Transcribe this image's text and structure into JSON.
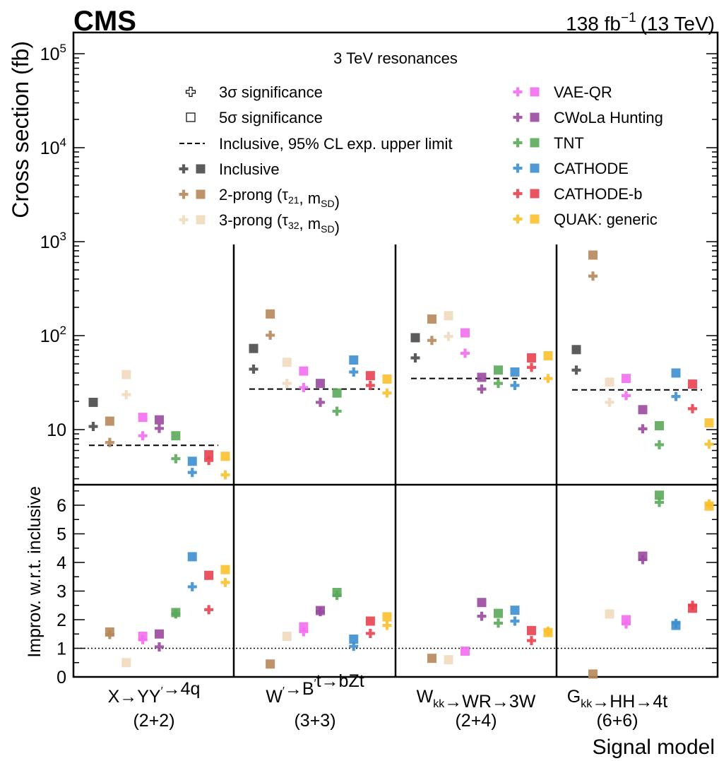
{
  "header": {
    "experiment": "CMS",
    "lumi": "138 fb",
    "lumi_exp": "−1",
    "energy": "(13 TeV)"
  },
  "chart_data": {
    "type": "scatter",
    "title": "3 TeV resonances",
    "ylabel_top": "Cross section (fb)",
    "ylabel_bottom": "Improv. w.r.t. inclusive",
    "xlabel": "Signal model",
    "yscale_top": "log",
    "ylim_top": [
      2,
      150000
    ],
    "ylim_bottom": [
      0,
      6.75
    ],
    "yticks_top": [
      "10",
      "10²",
      "10³",
      "10⁴",
      "10⁵"
    ],
    "yticks_bottom": [
      "0",
      "1",
      "2",
      "3",
      "4",
      "5",
      "6"
    ],
    "legend_left": [
      {
        "label": "3σ significance",
        "marker": "plus-open"
      },
      {
        "label": "5σ significance",
        "marker": "square-open"
      },
      {
        "label": "Inclusive, 95% CL exp. upper limit",
        "marker": "dashed-line"
      },
      {
        "label": "Inclusive",
        "method": "Inclusive"
      },
      {
        "label": "2-prong (τ21, mSD)",
        "method": "2-prong"
      },
      {
        "label": "3-prong (τ32, mSD)",
        "method": "3-prong"
      }
    ],
    "legend_right": [
      {
        "label": "VAE-QR",
        "method": "VAE-QR"
      },
      {
        "label": "CWoLa Hunting",
        "method": "CWoLa"
      },
      {
        "label": "TNT",
        "method": "TNT"
      },
      {
        "label": "CATHODE",
        "method": "CATHODE"
      },
      {
        "label": "CATHODE-b",
        "method": "CATHODE-b"
      },
      {
        "label": "QUAK: generic",
        "method": "QUAK"
      }
    ],
    "methods": [
      "Inclusive",
      "2-prong",
      "3-prong",
      "VAE-QR",
      "CWoLa",
      "TNT",
      "CATHODE",
      "CATHODE-b",
      "QUAK"
    ],
    "colors": {
      "Inclusive": "#4a4a4a",
      "2-prong": "#b8875a",
      "3-prong": "#f1d9bf",
      "VAE-QR": "#f36ef0",
      "CWoLa": "#9a4a9e",
      "TNT": "#5aa85a",
      "CATHODE": "#3c8fcf",
      "CATHODE-b": "#e8404f",
      "QUAK": "#fbc02d"
    },
    "categories": [
      {
        "model": "X→YY′→4q",
        "sub": "(2+2)",
        "limit": 6.8
      },
      {
        "model": "W′→B′t→bZt",
        "sub": "(3+3)",
        "limit": 27
      },
      {
        "model": "Wkk→WR→3W",
        "sub": "(2+4)",
        "limit": 35
      },
      {
        "model": "Gkk→HH→4t",
        "sub": "(6+6)",
        "limit": 26.5
      }
    ],
    "series": [
      {
        "name": "Inclusive",
        "sig3": [
          10.8,
          44,
          58,
          43
        ],
        "sig5": [
          19.5,
          73,
          95,
          71
        ],
        "improv3": [
          null,
          null,
          null,
          null
        ],
        "improv5": [
          null,
          null,
          null,
          null
        ]
      },
      {
        "name": "2-prong",
        "sig3": [
          7.3,
          101,
          89,
          430
        ],
        "sig5": [
          12.3,
          170,
          150,
          720
        ],
        "improv3": [
          1.48,
          null,
          null,
          null
        ],
        "improv5": [
          1.57,
          0.45,
          0.65,
          0.1
        ]
      },
      {
        "name": "3-prong",
        "sig3": [
          23.5,
          31,
          98,
          19.5
        ],
        "sig5": [
          38.5,
          52,
          163,
          32
        ],
        "improv3": [
          null,
          null,
          null,
          null
        ],
        "improv5": [
          0.5,
          1.42,
          0.6,
          2.2
        ]
      },
      {
        "name": "VAE-QR",
        "sig3": [
          8.6,
          28,
          65,
          23
        ],
        "sig5": [
          13.5,
          42,
          107,
          35
        ],
        "improv3": [
          1.3,
          1.58,
          null,
          1.85
        ],
        "improv5": [
          1.42,
          1.75,
          0.9,
          2.0
        ]
      },
      {
        "name": "CWoLa",
        "sig3": [
          10.3,
          19.5,
          27,
          10.2
        ],
        "sig5": [
          12.7,
          31,
          36,
          16.3
        ],
        "improv3": [
          1.05,
          2.28,
          2.12,
          4.1
        ],
        "improv5": [
          1.5,
          2.32,
          2.6,
          4.22
        ]
      },
      {
        "name": "TNT",
        "sig3": [
          4.9,
          15.7,
          31,
          6.9
        ],
        "sig5": [
          8.6,
          24.5,
          43,
          11
        ],
        "improv3": [
          2.2,
          2.85,
          1.88,
          6.1
        ],
        "improv5": [
          2.25,
          2.95,
          2.22,
          6.35
        ]
      },
      {
        "name": "CATHODE",
        "sig3": [
          3.5,
          41,
          29.5,
          22.5
        ],
        "sig5": [
          4.6,
          55,
          41,
          40
        ],
        "improv3": [
          3.15,
          1.07,
          1.95,
          1.87
        ],
        "improv5": [
          4.2,
          1.32,
          2.33,
          1.8
        ]
      },
      {
        "name": "CATHODE-b",
        "sig3": [
          4.7,
          29.5,
          46,
          16.7
        ],
        "sig5": [
          5.4,
          37.5,
          58,
          30.5
        ],
        "improv3": [
          2.35,
          1.52,
          1.27,
          2.5
        ],
        "improv5": [
          3.55,
          1.95,
          1.62,
          2.4
        ]
      },
      {
        "name": "QUAK",
        "sig3": [
          3.3,
          24.5,
          35,
          7.0
        ],
        "sig5": [
          5.2,
          34.5,
          61,
          11.8
        ],
        "improv3": [
          3.3,
          1.8,
          1.6,
          6.05
        ],
        "improv5": [
          3.75,
          2.1,
          1.55,
          5.97
        ]
      }
    ]
  }
}
